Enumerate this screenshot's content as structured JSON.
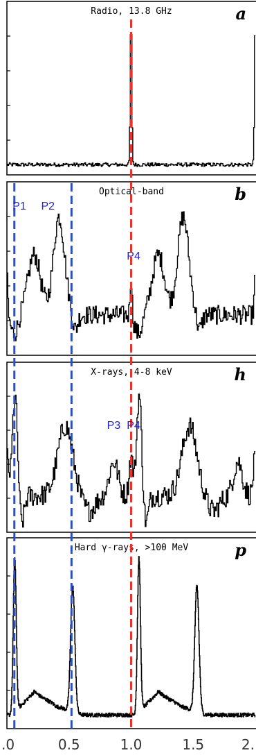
{
  "panels": [
    {
      "id": "a",
      "title": "Radio, 13.8 GHz",
      "letter": "a",
      "profile": "radio",
      "peak_labels": []
    },
    {
      "id": "b",
      "title": "Optical-band",
      "letter": "b",
      "profile": "optical",
      "peak_labels": [
        {
          "text": "P1",
          "phase": 0.1
        },
        {
          "text": "P2",
          "phase": 0.33
        },
        {
          "text": "P4",
          "phase": 1.02
        }
      ]
    },
    {
      "id": "h",
      "title": "X-rays, 4-8 keV",
      "letter": "h",
      "profile": "xray",
      "peak_labels": [
        {
          "text": "P3",
          "phase": 0.86
        },
        {
          "text": "P4",
          "phase": 1.02
        }
      ]
    },
    {
      "id": "p",
      "title": "Hard γ-rays, >100 MeV",
      "letter": "p",
      "profile": "gamma",
      "peak_labels": []
    }
  ],
  "chart_data": {
    "type": "line",
    "title": "",
    "xlabel": "",
    "ylabel": "",
    "xlim": [
      0.0,
      2.0
    ],
    "x_ticks": [
      ".0",
      "0.5",
      "1.0",
      "1.5",
      "2."
    ],
    "x_tick_values": [
      0.0,
      0.5,
      1.0,
      1.5,
      2.0
    ],
    "reference_lines": [
      {
        "phase": 0.06,
        "color": "#2b4fc7",
        "style": "dashed",
        "panels": [
          "b",
          "h",
          "p"
        ]
      },
      {
        "phase": 0.52,
        "color": "#2b4fc7",
        "style": "dashed",
        "panels": [
          "b",
          "h",
          "p"
        ]
      },
      {
        "phase": 1.0,
        "color": "#e8332a",
        "style": "dashed",
        "panels": [
          "a",
          "b",
          "h",
          "p"
        ]
      }
    ],
    "series": [
      {
        "panel": "a",
        "peaks": [
          {
            "phase": 1.0,
            "height": 1.0
          }
        ],
        "baseline": 0.02
      },
      {
        "panel": "b",
        "peaks": [
          {
            "phase": 0.2,
            "height": 0.55
          },
          {
            "phase": 0.42,
            "height": 0.88
          },
          {
            "phase": 1.0,
            "height": 0.45
          },
          {
            "phase": 1.2,
            "height": 0.55
          },
          {
            "phase": 1.42,
            "height": 0.88
          }
        ],
        "baseline": 0.2
      },
      {
        "panel": "h",
        "peaks": [
          {
            "phase": 0.06,
            "height": 0.95
          },
          {
            "phase": 0.48,
            "height": 0.75
          },
          {
            "phase": 0.86,
            "height": 0.55
          },
          {
            "phase": 1.02,
            "height": 0.6
          },
          {
            "phase": 1.07,
            "height": 0.95
          },
          {
            "phase": 1.48,
            "height": 0.75
          },
          {
            "phase": 1.86,
            "height": 0.55
          }
        ],
        "baseline": 0.15
      },
      {
        "panel": "p",
        "peaks": [
          {
            "phase": 0.06,
            "height": 1.0
          },
          {
            "phase": 0.52,
            "height": 0.85
          },
          {
            "phase": 1.06,
            "height": 1.0
          },
          {
            "phase": 1.52,
            "height": 0.85
          }
        ],
        "baseline": 0.03
      }
    ]
  }
}
